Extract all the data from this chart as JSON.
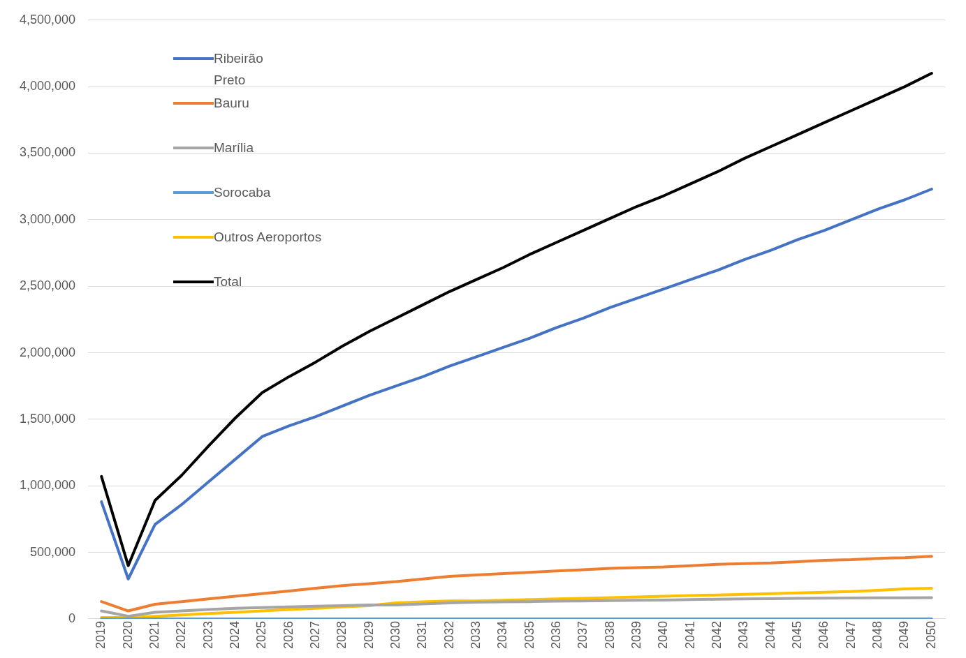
{
  "chart_data": {
    "type": "line",
    "categories": [
      "2019",
      "2020",
      "2021",
      "2022",
      "2023",
      "2024",
      "2025",
      "2026",
      "2027",
      "2028",
      "2029",
      "2030",
      "2031",
      "2032",
      "2033",
      "2034",
      "2035",
      "2036",
      "2037",
      "2038",
      "2039",
      "2040",
      "2041",
      "2042",
      "2043",
      "2044",
      "2045",
      "2046",
      "2047",
      "2048",
      "2049",
      "2050"
    ],
    "series": [
      {
        "name": "Ribeirão Preto",
        "color": "#4472c4",
        "values": [
          880000,
          300000,
          710000,
          860000,
          1030000,
          1200000,
          1370000,
          1450000,
          1520000,
          1600000,
          1680000,
          1750000,
          1820000,
          1900000,
          1970000,
          2040000,
          2110000,
          2190000,
          2260000,
          2340000,
          2410000,
          2480000,
          2550000,
          2620000,
          2700000,
          2770000,
          2850000,
          2920000,
          3000000,
          3080000,
          3150000,
          3230000
        ]
      },
      {
        "name": "Bauru",
        "color": "#ed7d31",
        "values": [
          130000,
          60000,
          110000,
          130000,
          150000,
          170000,
          190000,
          210000,
          230000,
          250000,
          265000,
          280000,
          300000,
          320000,
          330000,
          340000,
          350000,
          360000,
          370000,
          380000,
          385000,
          390000,
          400000,
          410000,
          415000,
          420000,
          430000,
          440000,
          445000,
          455000,
          460000,
          470000
        ]
      },
      {
        "name": "Marília",
        "color": "#a5a5a5",
        "values": [
          60000,
          20000,
          50000,
          60000,
          70000,
          80000,
          85000,
          90000,
          95000,
          100000,
          105000,
          105000,
          112000,
          120000,
          125000,
          128000,
          130000,
          133000,
          135000,
          138000,
          140000,
          142000,
          145000,
          148000,
          150000,
          152000,
          154000,
          156000,
          157000,
          158000,
          159000,
          160000
        ]
      },
      {
        "name": "Sorocaba",
        "color": "#5b9bd5",
        "values": [
          0,
          0,
          0,
          0,
          0,
          0,
          0,
          0,
          0,
          0,
          0,
          0,
          0,
          0,
          0,
          0,
          0,
          0,
          0,
          0,
          0,
          0,
          0,
          0,
          0,
          0,
          0,
          0,
          0,
          0,
          0,
          0
        ]
      },
      {
        "name": "Outros Aeroportos",
        "color": "#ffc000",
        "values": [
          10000,
          10000,
          20000,
          30000,
          40000,
          50000,
          60000,
          70000,
          80000,
          90000,
          100000,
          120000,
          128000,
          135000,
          135000,
          140000,
          145000,
          150000,
          155000,
          160000,
          165000,
          170000,
          175000,
          180000,
          185000,
          190000,
          195000,
          200000,
          205000,
          215000,
          225000,
          230000
        ]
      },
      {
        "name": "Total",
        "color": "#000000",
        "values": [
          1070000,
          400000,
          890000,
          1080000,
          1300000,
          1510000,
          1700000,
          1820000,
          1930000,
          2050000,
          2160000,
          2260000,
          2360000,
          2460000,
          2550000,
          2640000,
          2740000,
          2830000,
          2920000,
          3010000,
          3100000,
          3180000,
          3270000,
          3360000,
          3460000,
          3550000,
          3640000,
          3730000,
          3820000,
          3910000,
          4000000,
          4100000
        ]
      }
    ],
    "ylim": [
      0,
      4500000
    ],
    "yticks": [
      {
        "value": 0,
        "label": "0"
      },
      {
        "value": 500000,
        "label": "500,000"
      },
      {
        "value": 1000000,
        "label": "1,000,000"
      },
      {
        "value": 1500000,
        "label": "1,500,000"
      },
      {
        "value": 2000000,
        "label": "2,000,000"
      },
      {
        "value": 2500000,
        "label": "2,500,000"
      },
      {
        "value": 3000000,
        "label": "3,000,000"
      },
      {
        "value": 3500000,
        "label": "3,500,000"
      },
      {
        "value": 4000000,
        "label": "4,000,000"
      },
      {
        "value": 4500000,
        "label": "4,500,000"
      }
    ],
    "grid": "y",
    "legend": "top left",
    "marker": "none",
    "line_style": "solid"
  }
}
